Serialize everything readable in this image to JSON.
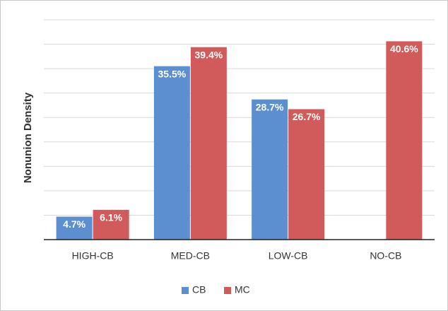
{
  "chart_data": {
    "type": "bar",
    "y_label": "Nonunion Density",
    "categories": [
      "HIGH-CB",
      "MED-CB",
      "LOW-CB",
      "NO-CB"
    ],
    "series": [
      {
        "name": "CB",
        "color": "#5b8fcf",
        "values": [
          4.7,
          35.5,
          28.7,
          null
        ],
        "value_labels": [
          "4.7%",
          "35.5%",
          "28.7%",
          null
        ]
      },
      {
        "name": "MC",
        "color": "#d15b5b",
        "values": [
          6.1,
          39.4,
          26.7,
          40.6
        ],
        "value_labels": [
          "6.1%",
          "39.4%",
          "26.7%",
          "40.6%"
        ]
      }
    ],
    "ylim": [
      0,
      45
    ],
    "yticks": [
      0,
      5,
      10,
      15,
      20,
      25,
      30,
      35,
      40,
      45
    ],
    "grid": true,
    "legend": "bottom"
  }
}
